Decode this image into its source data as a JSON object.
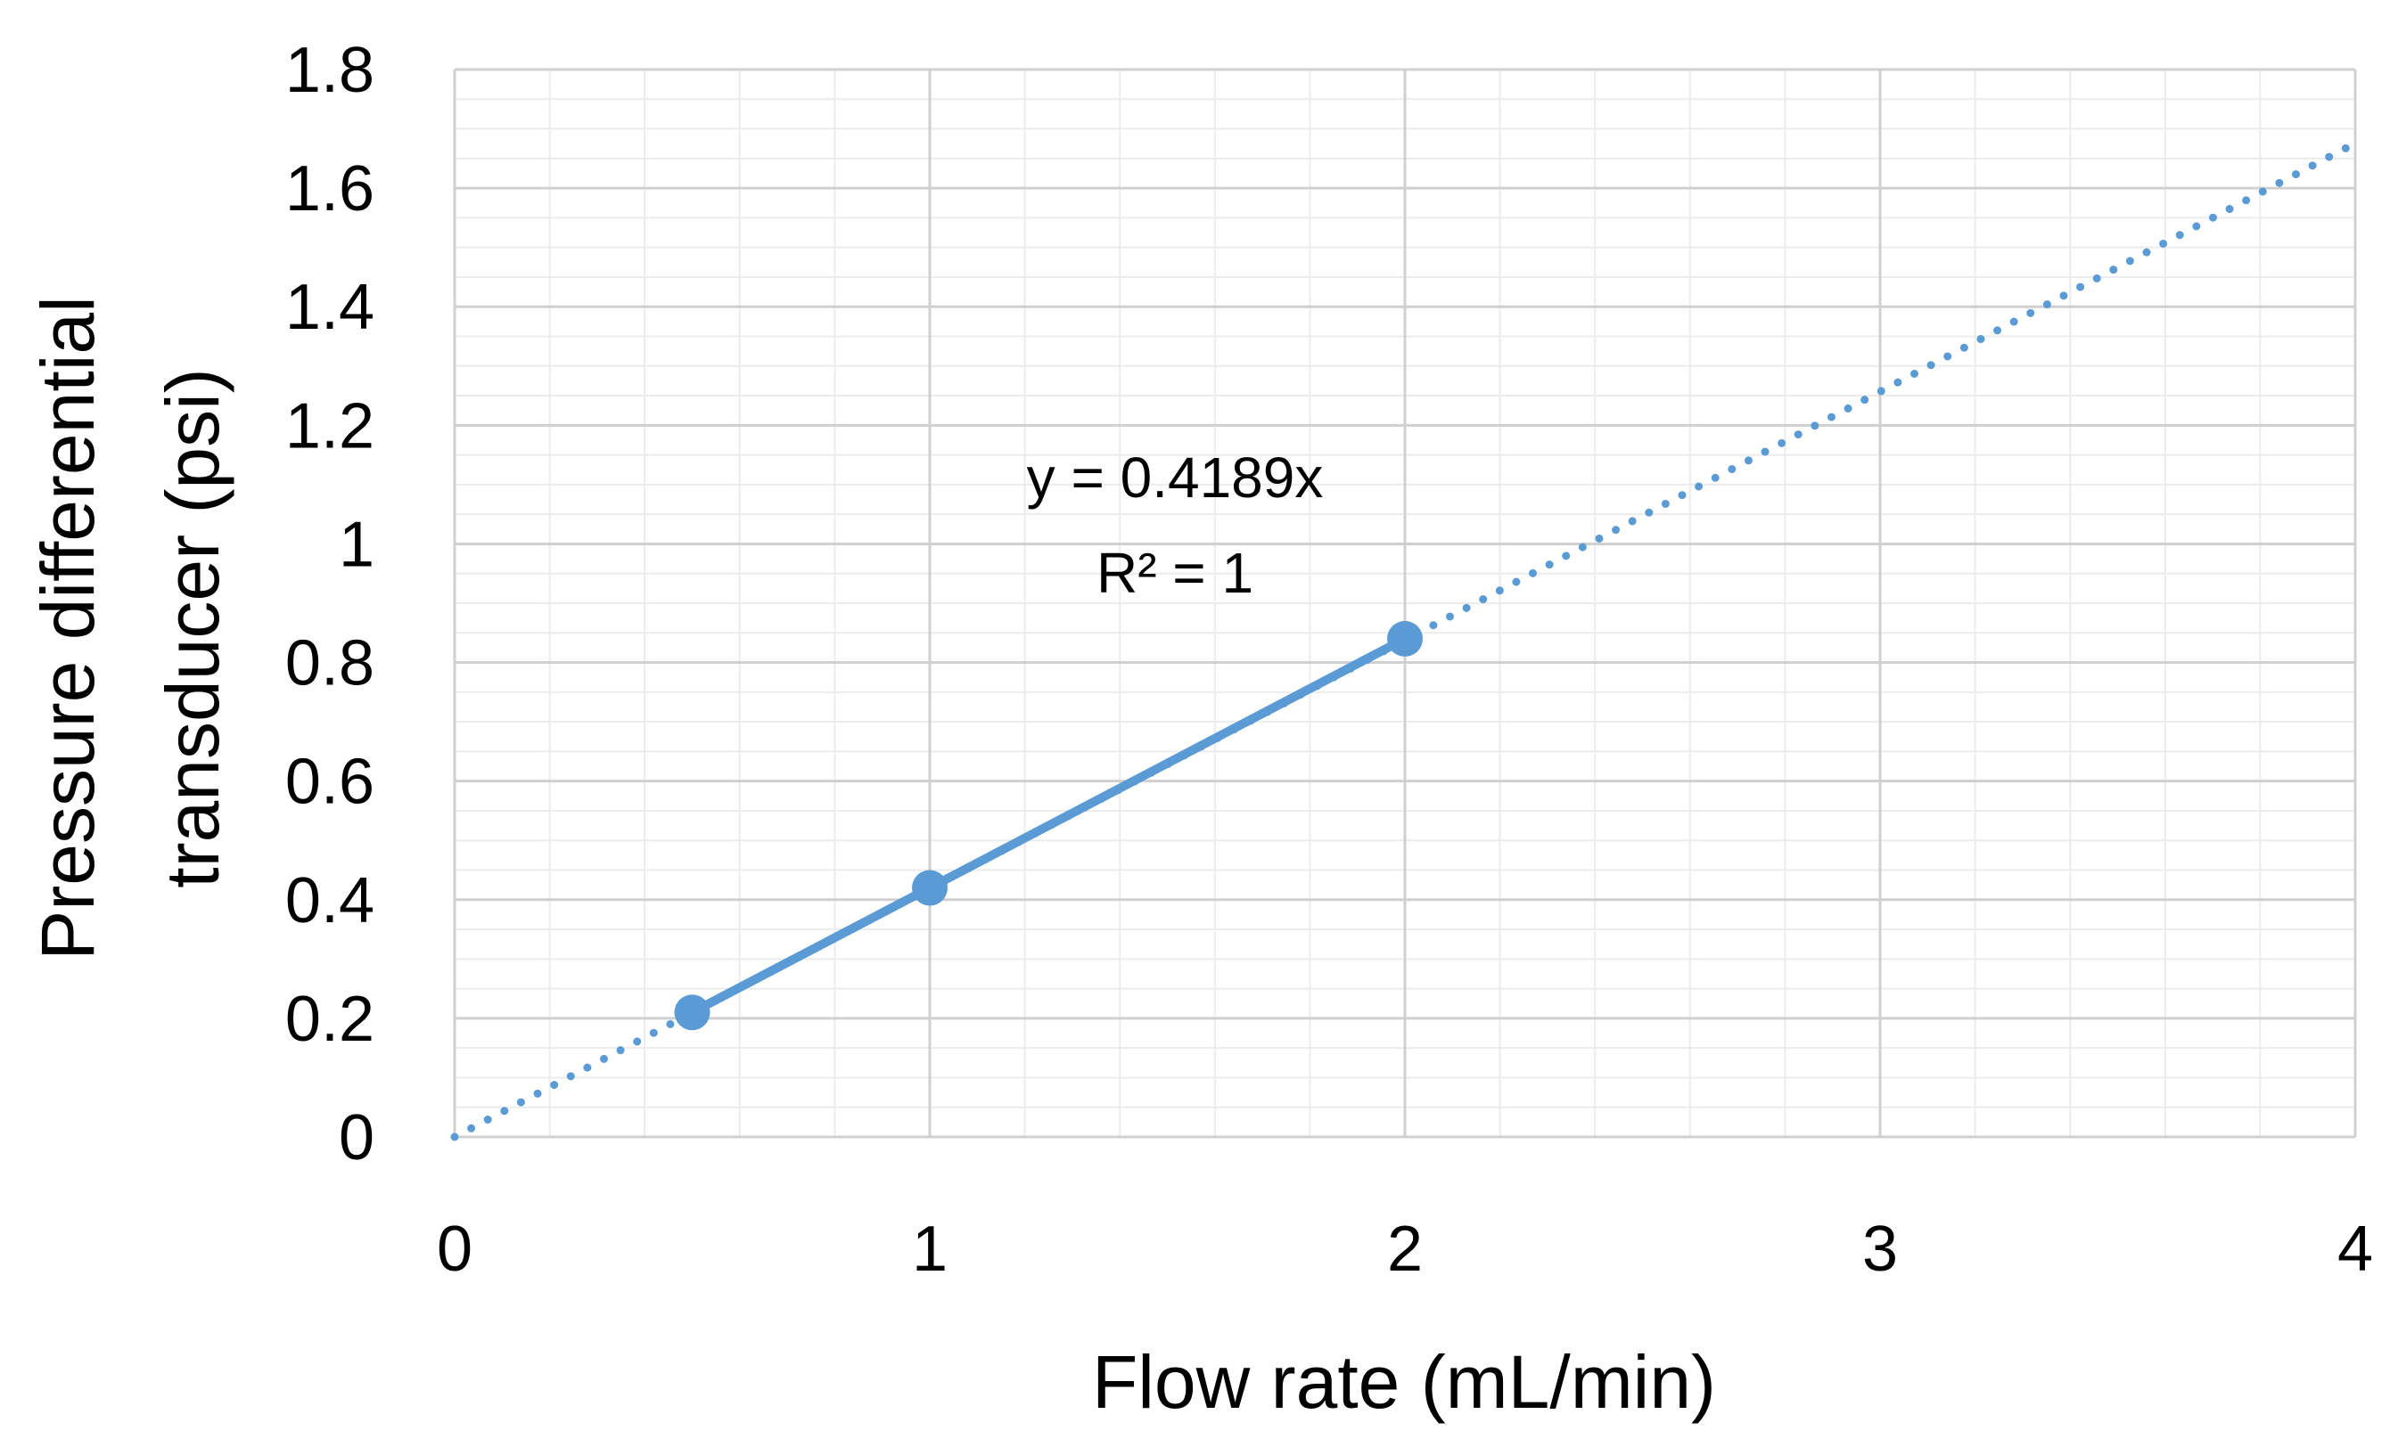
{
  "chart_data": {
    "type": "scatter",
    "xlabel": "Flow rate  (mL/min)",
    "ylabel_lines": [
      "Pressure differential",
      "transducer (psi)"
    ],
    "xlim": [
      0,
      4
    ],
    "ylim": [
      0,
      1.8
    ],
    "x_ticks": [
      "0",
      "1",
      "2",
      "3",
      "4"
    ],
    "y_ticks": [
      "0",
      "0.2",
      "0.4",
      "0.6",
      "0.8",
      "1",
      "1.2",
      "1.4",
      "1.6",
      "1.8"
    ],
    "grid": true,
    "legend": "none",
    "series": [
      {
        "x": [
          0.5,
          1,
          2
        ],
        "y": [
          0.21,
          0.42,
          0.84
        ],
        "color": "#5B9BD5",
        "connected": true
      }
    ],
    "trendline": {
      "type": "linear",
      "slope": 0.4189,
      "intercept": 0,
      "x_range": [
        0,
        4
      ],
      "style": "dotted",
      "color": "#5B9BD5",
      "equation_label": "y = 0.4189x",
      "r2_label": "R² = 1"
    }
  }
}
